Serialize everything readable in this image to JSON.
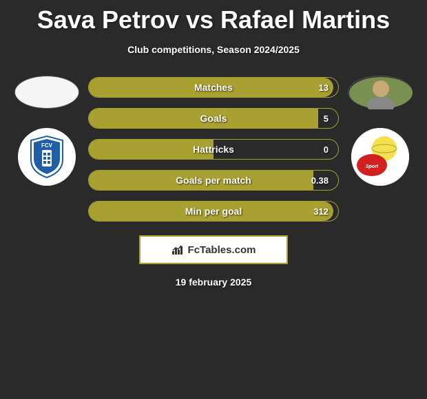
{
  "title": "Sava Petrov vs Rafael Martins",
  "subtitle": "Club competitions, Season 2024/2025",
  "date": "19 february 2025",
  "brand": "FcTables.com",
  "colors": {
    "accent": "#a8a030",
    "background": "#2a2a2a",
    "bar_border": "#a8a030",
    "white": "#ffffff"
  },
  "players": {
    "left": {
      "name": "Sava Petrov",
      "photo_bg": "#f5f5f5",
      "club_bg": "#ffffff",
      "club_shield": "#1e5fa8"
    },
    "right": {
      "name": "Rafael Martins",
      "photo_bg": "#c9a878",
      "club_bg": "#f5e050",
      "club_accent": "#d02020"
    }
  },
  "stats": [
    {
      "label": "Matches",
      "value": "13",
      "fill_pct": 98
    },
    {
      "label": "Goals",
      "value": "5",
      "fill_pct": 92
    },
    {
      "label": "Hattricks",
      "value": "0",
      "fill_pct": 50
    },
    {
      "label": "Goals per match",
      "value": "0.38",
      "fill_pct": 90
    },
    {
      "label": "Min per goal",
      "value": "312",
      "fill_pct": 98
    }
  ]
}
